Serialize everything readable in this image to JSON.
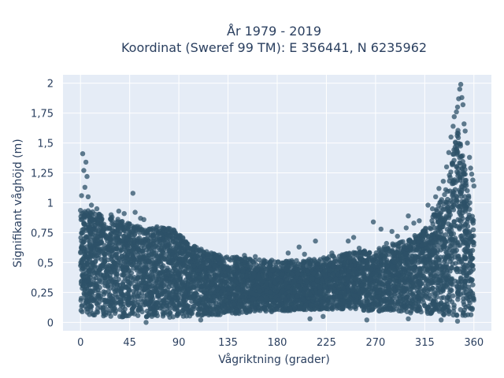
{
  "chart_data": {
    "type": "scatter",
    "title_lines": [
      "År 1979 - 2019",
      "Koordinat (Sweref 99 TM): E 356441, N 6235962"
    ],
    "xlabel": "Vågriktning (grader)",
    "ylabel": "Signifikant våghöjd (m)",
    "xlim": [
      -16,
      376
    ],
    "ylim": [
      -0.07,
      2.07
    ],
    "x_ticks": [
      0,
      45,
      90,
      135,
      180,
      225,
      270,
      315,
      360
    ],
    "x_tick_labels": [
      "0",
      "45",
      "90",
      "135",
      "180",
      "225",
      "270",
      "315",
      "360"
    ],
    "y_ticks": [
      0,
      0.25,
      0.5,
      0.75,
      1,
      1.25,
      1.5,
      1.75,
      2
    ],
    "y_tick_labels": [
      "0",
      "0,25",
      "0,5",
      "0,75",
      "1",
      "1,25",
      "1,5",
      "1,75",
      "2"
    ],
    "grid": true,
    "marker_color": "#2e5268",
    "envelope": {
      "x": [
        0,
        10,
        20,
        30,
        45,
        60,
        75,
        85,
        100,
        120,
        140,
        160,
        180,
        200,
        220,
        240,
        260,
        280,
        300,
        315,
        325,
        335,
        345,
        352,
        360
      ],
      "y_core": [
        0.88,
        0.85,
        0.82,
        0.8,
        0.75,
        0.7,
        0.72,
        0.7,
        0.58,
        0.5,
        0.47,
        0.45,
        0.43,
        0.44,
        0.46,
        0.5,
        0.52,
        0.56,
        0.62,
        0.7,
        0.85,
        1.05,
        1.55,
        1.2,
        0.75
      ],
      "y_min": [
        0.07,
        0.06,
        0.05,
        0.05,
        0.04,
        0.04,
        0.04,
        0.04,
        0.05,
        0.06,
        0.07,
        0.08,
        0.09,
        0.1,
        0.11,
        0.11,
        0.1,
        0.09,
        0.08,
        0.07,
        0.06,
        0.05,
        0.05,
        0.05,
        0.06
      ]
    },
    "outliers": [
      {
        "x": 2,
        "y": 1.41
      },
      {
        "x": 3,
        "y": 1.27
      },
      {
        "x": 5,
        "y": 1.34
      },
      {
        "x": 6,
        "y": 1.22
      },
      {
        "x": 4,
        "y": 1.13
      },
      {
        "x": 1,
        "y": 1.06
      },
      {
        "x": 7,
        "y": 1.05
      },
      {
        "x": 10,
        "y": 0.98
      },
      {
        "x": 15,
        "y": 0.95
      },
      {
        "x": 28,
        "y": 0.9
      },
      {
        "x": 35,
        "y": 0.93
      },
      {
        "x": 40,
        "y": 0.91
      },
      {
        "x": 48,
        "y": 1.08
      },
      {
        "x": 50,
        "y": 0.92
      },
      {
        "x": 55,
        "y": 0.87
      },
      {
        "x": 58,
        "y": 0.86
      },
      {
        "x": 70,
        "y": 0.8
      },
      {
        "x": 80,
        "y": 0.78
      },
      {
        "x": 90,
        "y": 0.72
      },
      {
        "x": 100,
        "y": 0.62
      },
      {
        "x": 150,
        "y": 0.56
      },
      {
        "x": 160,
        "y": 0.55
      },
      {
        "x": 175,
        "y": 0.52
      },
      {
        "x": 190,
        "y": 0.58
      },
      {
        "x": 200,
        "y": 0.63
      },
      {
        "x": 205,
        "y": 0.57
      },
      {
        "x": 215,
        "y": 0.68
      },
      {
        "x": 230,
        "y": 0.58
      },
      {
        "x": 245,
        "y": 0.68
      },
      {
        "x": 250,
        "y": 0.71
      },
      {
        "x": 255,
        "y": 0.62
      },
      {
        "x": 260,
        "y": 0.59
      },
      {
        "x": 268,
        "y": 0.84
      },
      {
        "x": 275,
        "y": 0.78
      },
      {
        "x": 280,
        "y": 0.66
      },
      {
        "x": 285,
        "y": 0.76
      },
      {
        "x": 290,
        "y": 0.72
      },
      {
        "x": 298,
        "y": 0.79
      },
      {
        "x": 300,
        "y": 0.89
      },
      {
        "x": 305,
        "y": 0.83
      },
      {
        "x": 310,
        "y": 0.85
      },
      {
        "x": 318,
        "y": 0.98
      },
      {
        "x": 322,
        "y": 0.95
      },
      {
        "x": 325,
        "y": 1.05
      },
      {
        "x": 328,
        "y": 1.12
      },
      {
        "x": 332,
        "y": 1.18
      },
      {
        "x": 335,
        "y": 1.3
      },
      {
        "x": 337,
        "y": 1.42
      },
      {
        "x": 339,
        "y": 1.55
      },
      {
        "x": 341,
        "y": 1.64
      },
      {
        "x": 342,
        "y": 1.72
      },
      {
        "x": 344,
        "y": 1.76
      },
      {
        "x": 345,
        "y": 1.8
      },
      {
        "x": 346,
        "y": 1.87
      },
      {
        "x": 347,
        "y": 1.95
      },
      {
        "x": 348,
        "y": 1.99
      },
      {
        "x": 349,
        "y": 1.88
      },
      {
        "x": 350,
        "y": 1.82
      },
      {
        "x": 351,
        "y": 1.66
      },
      {
        "x": 352,
        "y": 1.6
      },
      {
        "x": 354,
        "y": 1.5
      },
      {
        "x": 356,
        "y": 1.38
      },
      {
        "x": 358,
        "y": 1.24
      },
      {
        "x": 359,
        "y": 1.19
      },
      {
        "x": 360,
        "y": 1.14
      },
      {
        "x": 357,
        "y": 1.29
      },
      {
        "x": 345,
        "y": 0.01
      },
      {
        "x": 210,
        "y": 0.03
      },
      {
        "x": 222,
        "y": 0.05
      },
      {
        "x": 262,
        "y": 0.02
      },
      {
        "x": 300,
        "y": 0.03
      },
      {
        "x": 330,
        "y": 0.02
      },
      {
        "x": 60,
        "y": 0.0
      },
      {
        "x": 110,
        "y": 0.02
      }
    ]
  }
}
